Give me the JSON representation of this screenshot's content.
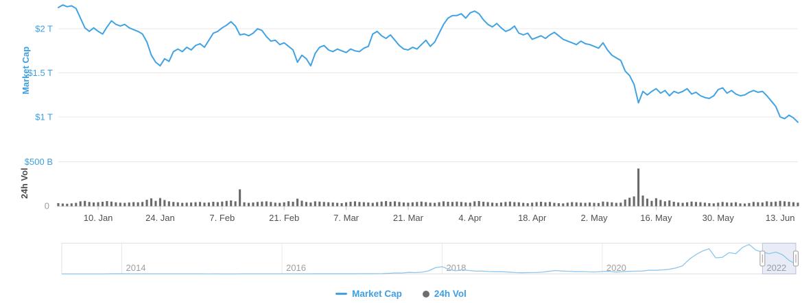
{
  "colors": {
    "line_blue": "#40a2e4",
    "label_blue": "#3d9fe0",
    "volume_bar_gray": "#6a6a6a",
    "grid_gray": "#e8e8e8",
    "axis_line_gray": "#d9d9d9",
    "tick_mark": "#bccbd8",
    "date_label_gray": "#4f4f4f",
    "zero_label_gray": "#9b9b9b",
    "nav_line_blue": "#8cc6ee",
    "nav_border": "#e0e0e0",
    "nav_year_label": "#9e9e9e",
    "nav_mask_fill": "rgba(125,148,205,0.18)",
    "nav_mask_stroke": "rgba(125,148,205,0.35)",
    "handle_fill": "#fafafa",
    "handle_stroke": "#9e9e9e"
  },
  "chart_data": {
    "type": "line",
    "main": {
      "series_name": "Market Cap",
      "ylabel": "Market Cap",
      "unit": "USD trillions",
      "start_date": "2022-01-01",
      "end_date": "2022-06-17",
      "interval": "daily",
      "y_ticks": [
        "$2 T",
        "$1.5 T",
        "$1 T"
      ],
      "y_tick_values": [
        2.0,
        1.5,
        1.0
      ],
      "values_trillions": [
        2.24,
        2.27,
        2.25,
        2.26,
        2.23,
        2.12,
        2.01,
        1.97,
        2.01,
        1.97,
        1.94,
        2.02,
        2.09,
        2.05,
        2.03,
        2.05,
        2.01,
        1.99,
        1.97,
        1.94,
        1.85,
        1.7,
        1.62,
        1.58,
        1.66,
        1.63,
        1.74,
        1.77,
        1.74,
        1.79,
        1.76,
        1.81,
        1.83,
        1.79,
        1.87,
        1.95,
        1.97,
        2.01,
        2.04,
        2.08,
        2.03,
        1.93,
        1.94,
        1.92,
        1.95,
        2.0,
        1.98,
        1.91,
        1.86,
        1.87,
        1.82,
        1.84,
        1.8,
        1.76,
        1.62,
        1.7,
        1.66,
        1.58,
        1.72,
        1.79,
        1.81,
        1.76,
        1.74,
        1.77,
        1.75,
        1.73,
        1.77,
        1.75,
        1.74,
        1.78,
        1.8,
        1.94,
        1.97,
        1.92,
        1.89,
        1.93,
        1.87,
        1.81,
        1.77,
        1.76,
        1.79,
        1.77,
        1.82,
        1.87,
        1.8,
        1.85,
        1.95,
        2.05,
        2.12,
        2.15,
        2.15,
        2.17,
        2.12,
        2.18,
        2.2,
        2.17,
        2.1,
        2.05,
        2.02,
        2.06,
        2.01,
        1.97,
        1.99,
        2.03,
        1.95,
        1.93,
        1.95,
        1.88,
        1.9,
        1.92,
        1.89,
        1.93,
        1.96,
        1.92,
        1.88,
        1.86,
        1.84,
        1.82,
        1.86,
        1.83,
        1.82,
        1.8,
        1.78,
        1.84,
        1.76,
        1.7,
        1.67,
        1.64,
        1.52,
        1.47,
        1.37,
        1.16,
        1.29,
        1.25,
        1.29,
        1.32,
        1.27,
        1.3,
        1.24,
        1.29,
        1.27,
        1.29,
        1.32,
        1.26,
        1.28,
        1.24,
        1.22,
        1.21,
        1.24,
        1.31,
        1.33,
        1.27,
        1.3,
        1.26,
        1.24,
        1.25,
        1.28,
        1.3,
        1.28,
        1.29,
        1.24,
        1.18,
        1.12,
        1.0,
        0.98,
        1.02,
        0.99,
        0.94
      ]
    },
    "volume": {
      "series_name": "24h Vol",
      "ylabel": "24h Vol",
      "unit": "USD billions",
      "y_ticks": [
        "$500 B",
        "0"
      ],
      "y_tick_values": [
        500,
        0
      ],
      "values_billions": [
        35,
        30,
        28,
        32,
        38,
        55,
        60,
        48,
        42,
        45,
        50,
        58,
        52,
        44,
        40,
        38,
        42,
        46,
        44,
        48,
        72,
        88,
        60,
        92,
        70,
        55,
        48,
        44,
        38,
        40,
        42,
        45,
        48,
        40,
        42,
        50,
        46,
        52,
        60,
        65,
        55,
        190,
        44,
        38,
        42,
        48,
        52,
        55,
        48,
        40,
        38,
        44,
        56,
        50,
        85,
        62,
        48,
        42,
        55,
        52,
        48,
        45,
        42,
        38,
        35,
        44,
        50,
        55,
        48,
        45,
        42,
        38,
        46,
        52,
        58,
        50,
        55,
        48,
        42,
        40,
        44,
        48,
        52,
        46,
        40,
        38,
        45,
        55,
        50,
        48,
        52,
        48,
        42,
        40,
        55,
        58,
        50,
        46,
        40,
        36,
        42,
        48,
        52,
        46,
        44,
        38,
        34,
        40,
        46,
        50,
        44,
        48,
        38,
        34,
        32,
        40,
        46,
        44,
        40,
        38,
        42,
        38,
        36,
        52,
        48,
        44,
        38,
        40,
        75,
        95,
        110,
        424,
        120,
        85,
        60,
        90,
        70,
        55,
        65,
        50,
        42,
        38,
        44,
        52,
        48,
        45,
        40,
        35,
        32,
        40,
        48,
        42,
        40,
        45,
        32,
        30,
        36,
        48,
        45,
        42,
        55,
        48,
        52,
        60,
        55,
        50,
        45,
        40
      ]
    },
    "x_ticks": [
      "10. Jan",
      "24. Jan",
      "7. Feb",
      "21. Feb",
      "7. Mar",
      "21. Mar",
      "4. Apr",
      "18. Apr",
      "2. May",
      "16. May",
      "30. May",
      "13. Jun"
    ],
    "x_tick_day_indices": [
      9,
      23,
      37,
      51,
      65,
      79,
      93,
      107,
      121,
      135,
      149,
      163
    ],
    "navigator": {
      "start": "2013-04",
      "end": "2022-06",
      "interval": "monthly",
      "year_labels": [
        "2014",
        "2016",
        "2018",
        "2020",
        "2022"
      ],
      "year_month_indices": [
        9,
        33,
        57,
        81,
        105
      ],
      "selected_range_start_month_index": 105,
      "values_trillions": [
        0.001,
        0.001,
        0.001,
        0.001,
        0.001,
        0.002,
        0.002,
        0.004,
        0.01,
        0.01,
        0.008,
        0.006,
        0.006,
        0.006,
        0.008,
        0.008,
        0.006,
        0.005,
        0.005,
        0.005,
        0.005,
        0.004,
        0.003,
        0.004,
        0.003,
        0.003,
        0.003,
        0.004,
        0.004,
        0.004,
        0.004,
        0.005,
        0.007,
        0.007,
        0.006,
        0.007,
        0.007,
        0.008,
        0.01,
        0.012,
        0.011,
        0.011,
        0.012,
        0.012,
        0.014,
        0.018,
        0.019,
        0.025,
        0.035,
        0.06,
        0.1,
        0.09,
        0.15,
        0.13,
        0.17,
        0.3,
        0.6,
        0.7,
        0.45,
        0.3,
        0.4,
        0.33,
        0.27,
        0.28,
        0.23,
        0.22,
        0.21,
        0.18,
        0.13,
        0.12,
        0.13,
        0.14,
        0.17,
        0.25,
        0.33,
        0.28,
        0.26,
        0.22,
        0.23,
        0.2,
        0.19,
        0.24,
        0.25,
        0.18,
        0.22,
        0.25,
        0.27,
        0.28,
        0.36,
        0.35,
        0.39,
        0.45,
        0.57,
        0.77,
        1.4,
        1.85,
        2.2,
        2.43,
        1.55,
        1.6,
        2.05,
        1.95,
        2.55,
        2.85,
        2.3,
        2.1,
        1.95,
        2.1,
        1.85,
        1.3,
        0.95
      ]
    },
    "legend": [
      {
        "label": "Market Cap",
        "marker": "line",
        "color": "#40a2e4"
      },
      {
        "label": "24h Vol",
        "marker": "circle",
        "color": "#6e6e6e"
      }
    ]
  }
}
